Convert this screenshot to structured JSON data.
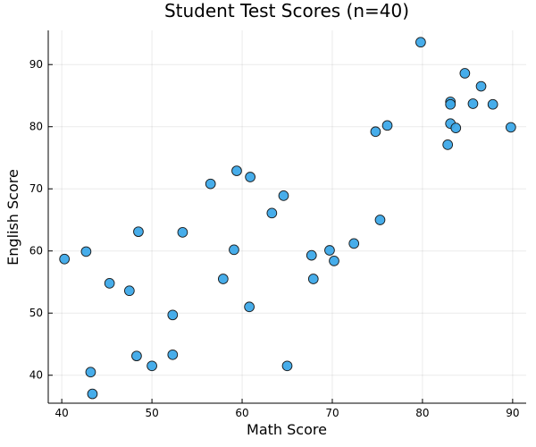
{
  "chart_data": {
    "type": "scatter",
    "title": "Student Test Scores (n=40)",
    "xlabel": "Math Score",
    "ylabel": "English Score",
    "xlim": [
      38.5,
      91.5
    ],
    "ylim": [
      35.5,
      95.5
    ],
    "xticks": [
      40,
      50,
      60,
      70,
      80,
      90
    ],
    "yticks": [
      40,
      50,
      60,
      70,
      80,
      90
    ],
    "grid": true,
    "legend": "none",
    "marker_color": "#3DA9E9",
    "series": [
      {
        "points": [
          {
            "x": 40.3,
            "y": 58.7
          },
          {
            "x": 42.7,
            "y": 59.9
          },
          {
            "x": 43.2,
            "y": 40.5
          },
          {
            "x": 43.4,
            "y": 37.0
          },
          {
            "x": 45.3,
            "y": 54.8
          },
          {
            "x": 47.5,
            "y": 53.6
          },
          {
            "x": 48.3,
            "y": 43.1
          },
          {
            "x": 48.5,
            "y": 63.1
          },
          {
            "x": 50.0,
            "y": 41.5
          },
          {
            "x": 52.3,
            "y": 49.7
          },
          {
            "x": 52.3,
            "y": 43.3
          },
          {
            "x": 53.4,
            "y": 63.0
          },
          {
            "x": 56.5,
            "y": 70.8
          },
          {
            "x": 57.9,
            "y": 55.5
          },
          {
            "x": 59.1,
            "y": 60.2
          },
          {
            "x": 59.4,
            "y": 72.9
          },
          {
            "x": 60.8,
            "y": 51.0
          },
          {
            "x": 60.9,
            "y": 71.9
          },
          {
            "x": 63.3,
            "y": 66.1
          },
          {
            "x": 64.6,
            "y": 68.9
          },
          {
            "x": 65.0,
            "y": 41.5
          },
          {
            "x": 67.7,
            "y": 59.3
          },
          {
            "x": 67.9,
            "y": 55.5
          },
          {
            "x": 69.7,
            "y": 60.1
          },
          {
            "x": 70.2,
            "y": 58.4
          },
          {
            "x": 72.4,
            "y": 61.2
          },
          {
            "x": 74.8,
            "y": 79.2
          },
          {
            "x": 75.3,
            "y": 65.0
          },
          {
            "x": 76.1,
            "y": 80.2
          },
          {
            "x": 79.8,
            "y": 93.6
          },
          {
            "x": 82.8,
            "y": 77.1
          },
          {
            "x": 83.1,
            "y": 84.0
          },
          {
            "x": 83.1,
            "y": 83.6
          },
          {
            "x": 83.1,
            "y": 80.5
          },
          {
            "x": 83.7,
            "y": 79.8
          },
          {
            "x": 84.7,
            "y": 88.6
          },
          {
            "x": 85.6,
            "y": 83.7
          },
          {
            "x": 86.5,
            "y": 86.5
          },
          {
            "x": 87.8,
            "y": 83.6
          },
          {
            "x": 89.8,
            "y": 79.9
          }
        ]
      }
    ]
  }
}
